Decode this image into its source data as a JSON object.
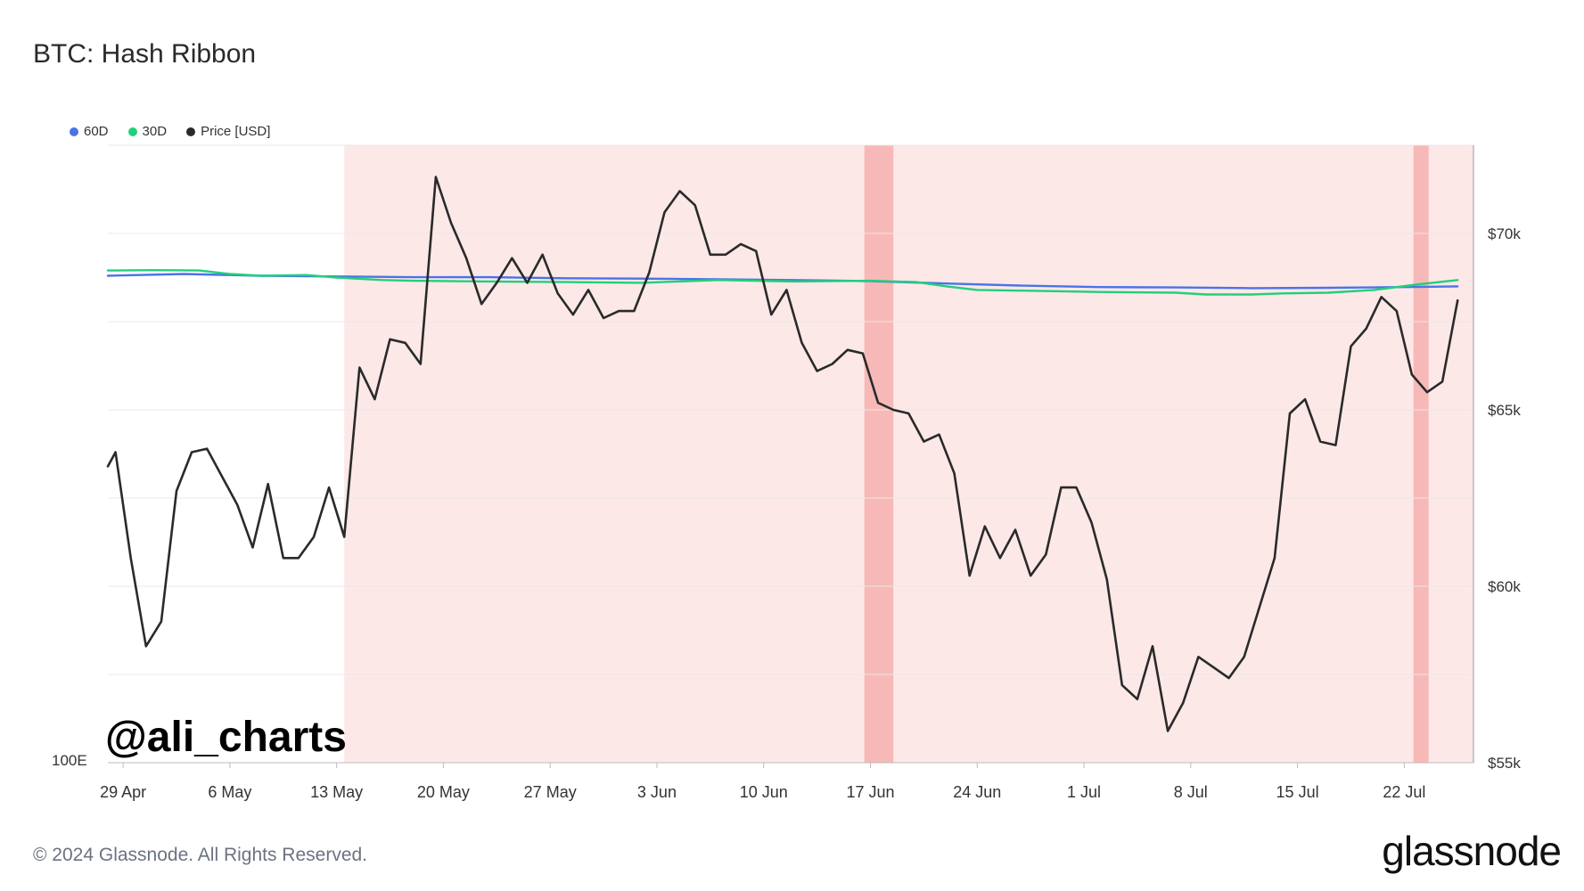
{
  "chart_data": {
    "type": "line",
    "title": "BTC: Hash Ribbon",
    "legend_position": "top-left",
    "colors": {
      "60D": "#4a73e8",
      "30D": "#21d07a",
      "Price [USD]": "#2a2a2a",
      "capitulation_light": "#fde8e8",
      "capitulation_dark": "#f7b9b7"
    },
    "legend": [
      {
        "name": "60D",
        "color": "#4a73e8"
      },
      {
        "name": "30D",
        "color": "#21d07a"
      },
      {
        "name": "Price [USD]",
        "color": "#2a2a2a"
      }
    ],
    "x_ticks": [
      "29 Apr",
      "6 May",
      "13 May",
      "20 May",
      "27 May",
      "3 Jun",
      "10 Jun",
      "17 Jun",
      "24 Jun",
      "1 Jul",
      "8 Jul",
      "15 Jul",
      "22 Jul"
    ],
    "x_start": "2024-04-28",
    "x_range_days": [
      0,
      90
    ],
    "left_axis": {
      "tick_label": "100E"
    },
    "right_axis": {
      "ticks": [
        "$55k",
        "$60k",
        "$65k",
        "$70k"
      ],
      "tick_values": [
        55000,
        60000,
        65000,
        70000
      ],
      "ylim": [
        55000,
        72500
      ]
    },
    "shaded_regions": [
      {
        "from_day": 15.5,
        "to_day": 89.7,
        "shade": "light"
      },
      {
        "from_day": 49.6,
        "to_day": 51.5,
        "shade": "dark"
      },
      {
        "from_day": 85.6,
        "to_day": 86.6,
        "shade": "dark"
      }
    ],
    "series": [
      {
        "name": "Price [USD]",
        "days": [
          0,
          0.5,
          1.5,
          2.5,
          3.5,
          4.5,
          5.5,
          6.5,
          7.5,
          8.5,
          9.5,
          10.5,
          11.5,
          12.5,
          13.5,
          14.5,
          15.5,
          16.5,
          17.5,
          18.5,
          19.5,
          20.5,
          21.5,
          22.5,
          23.5,
          24.5,
          25.5,
          26.5,
          27.5,
          28.5,
          29.5,
          30.5,
          31.5,
          32.5,
          33.5,
          34.5,
          35.5,
          36.5,
          37.5,
          38.5,
          39.5,
          40.5,
          41.5,
          42.5,
          43.5,
          44.5,
          45.5,
          46.5,
          47.5,
          48.5,
          49.5,
          50.5,
          51.5,
          52.5,
          53.5,
          54.5,
          55.5,
          56.5,
          57.5,
          58.5,
          59.5,
          60.5,
          61.5,
          62.5,
          63.5,
          64.5,
          65.5,
          66.5,
          67.5,
          68.5,
          69.5,
          70.5,
          71.5,
          72.5,
          73.5,
          74.5,
          75.5,
          76.5,
          77.5,
          78.5,
          79.5,
          80.5,
          81.5,
          82.5,
          83.5,
          84.5,
          85.5,
          86.5,
          87.5,
          88.5
        ],
        "values": [
          63400,
          63800,
          60800,
          58300,
          59000,
          62700,
          63800,
          63900,
          63100,
          62300,
          61100,
          62900,
          60800,
          60800,
          61400,
          62800,
          61400,
          66200,
          65300,
          67000,
          66900,
          66300,
          71600,
          70300,
          69300,
          68000,
          68600,
          69300,
          68600,
          69400,
          68300,
          67700,
          68400,
          67600,
          67800,
          67800,
          68900,
          70600,
          71200,
          70800,
          69400,
          69400,
          69700,
          69500,
          67700,
          68400,
          66900,
          66100,
          66300,
          66700,
          66600,
          65200,
          65000,
          64900,
          64100,
          64300,
          63200,
          60300,
          61700,
          60800,
          61600,
          60300,
          60900,
          62800,
          62800,
          61800,
          60200,
          57200,
          56800,
          58300,
          55900,
          56700,
          58000,
          57700,
          57400,
          58000,
          59400,
          60800,
          64900,
          65300,
          64100,
          64000,
          66800,
          67300,
          68200,
          67800,
          66000,
          65500,
          65800,
          68100
        ]
      },
      {
        "name": "60D",
        "days": [
          0,
          5,
          10,
          15,
          20,
          25,
          30,
          35,
          40,
          45,
          50,
          55,
          60,
          65,
          70,
          75,
          80,
          85,
          88.5
        ],
        "values": [
          68800,
          68850,
          68800,
          68780,
          68760,
          68760,
          68730,
          68720,
          68700,
          68680,
          68650,
          68580,
          68520,
          68480,
          68470,
          68450,
          68460,
          68480,
          68500
        ]
      },
      {
        "name": "30D",
        "days": [
          0,
          3,
          6,
          8,
          10,
          13,
          15,
          18,
          20,
          25,
          30,
          35,
          40,
          45,
          50,
          53,
          55,
          57,
          60,
          65,
          70,
          72,
          75,
          77,
          80,
          83,
          86,
          88.5
        ],
        "values": [
          68950,
          68960,
          68950,
          68850,
          68800,
          68820,
          68750,
          68680,
          68660,
          68640,
          68620,
          68600,
          68680,
          68640,
          68660,
          68620,
          68500,
          68400,
          68380,
          68340,
          68320,
          68270,
          68270,
          68300,
          68320,
          68400,
          68560,
          68680
        ]
      }
    ],
    "watermark": "@ali_charts",
    "footer": "© 2024 Glassnode. All Rights Reserved.",
    "brand": "glassnode"
  }
}
